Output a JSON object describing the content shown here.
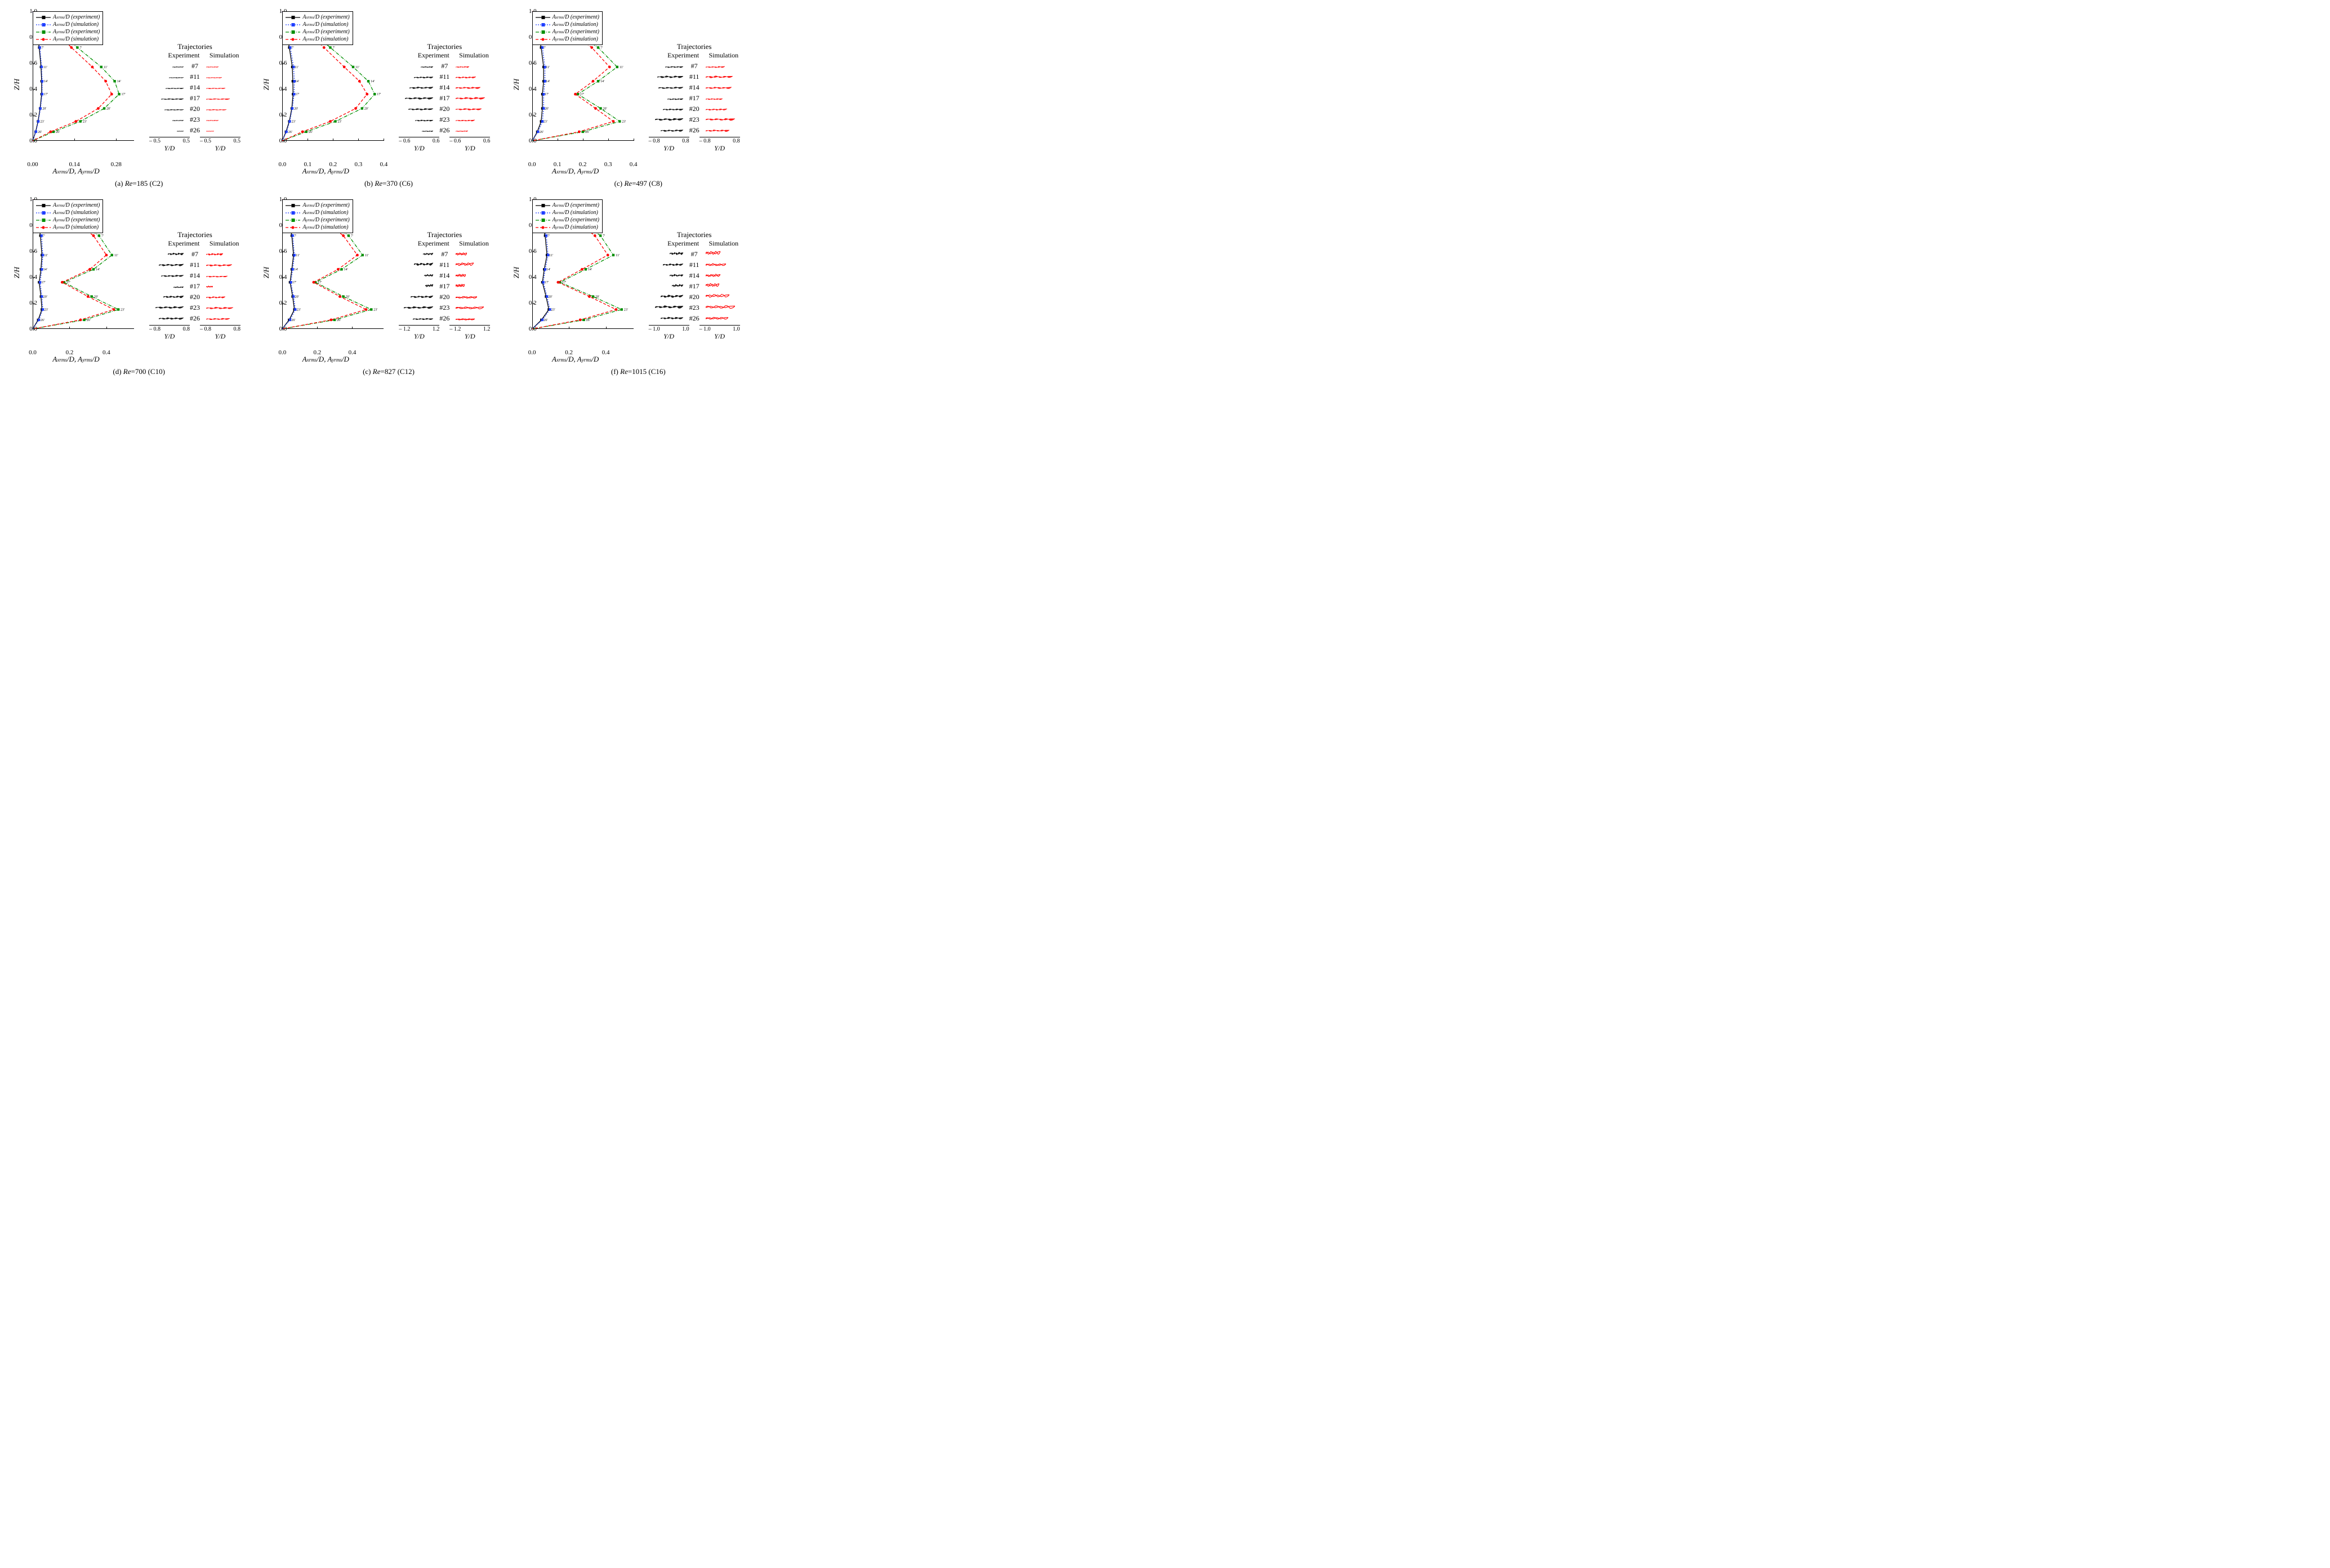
{
  "colors": {
    "black": "#000000",
    "blue": "#1f3fff",
    "green": "#008f00",
    "red": "#ff0000",
    "background": "#ffffff"
  },
  "legend_lines": [
    {
      "style": "solid",
      "color_key": "black",
      "marker": "square_black",
      "text_html": "A<sub>xrms</sub>/D (experiment)"
    },
    {
      "style": "short-dash",
      "color_key": "blue",
      "marker": "square_blue",
      "text_html": "A<sub>xrms</sub>/D (simulation)"
    },
    {
      "style": "dash-dot",
      "color_key": "green",
      "marker": "square_green",
      "text_html": "A<sub>yrms</sub>/D (experiment)"
    },
    {
      "style": "dash",
      "color_key": "red",
      "marker": "dot_red",
      "text_html": "A<sub>yrms</sub>/D (simulation)"
    }
  ],
  "y_axis": {
    "label": "Z/H",
    "ticks": [
      0.0,
      0.2,
      0.4,
      0.6,
      0.8,
      1.0
    ],
    "min": 0.0,
    "max": 1.0
  },
  "x_axis_label_html": "A<sub>xrms</sub>/D, A<sub>yrms</sub>/D",
  "traj_header": {
    "title": "Trajectories",
    "col_exp": "Experiment",
    "col_sim": "Simulation"
  },
  "traj_ids": [
    "#7",
    "#11",
    "#14",
    "#17",
    "#20",
    "#23",
    "#26"
  ],
  "marker_z": [
    0.72,
    0.57,
    0.46,
    0.36,
    0.25,
    0.15,
    0.07
  ],
  "marker_labels": [
    "7'",
    "11'",
    "14'",
    "17'",
    "20'",
    "23'",
    "26'"
  ],
  "traj_axis_label": "Y/D",
  "panels": [
    {
      "id": "a",
      "caption_prefix": "(a) ",
      "re_value": 185,
      "case_label": "(C2)",
      "x_ticks": [
        0.0,
        0.14,
        0.28
      ],
      "x_max": 0.34,
      "traj_axis_range": [
        -0.5,
        0.5
      ],
      "series": {
        "x_exp": {
          "z": [
            1.0,
            0.95,
            0.85,
            0.72,
            0.57,
            0.46,
            0.36,
            0.25,
            0.15,
            0.07,
            0.0
          ],
          "x": [
            0.0,
            0.005,
            0.012,
            0.022,
            0.028,
            0.03,
            0.03,
            0.025,
            0.018,
            0.01,
            0.0
          ]
        },
        "x_sim": {
          "z": [
            1.0,
            0.95,
            0.85,
            0.72,
            0.57,
            0.46,
            0.36,
            0.25,
            0.15,
            0.07,
            0.0
          ],
          "x": [
            0.0,
            0.006,
            0.014,
            0.024,
            0.03,
            0.032,
            0.032,
            0.026,
            0.019,
            0.011,
            0.0
          ]
        },
        "y_exp": {
          "z": [
            1.0,
            0.95,
            0.85,
            0.72,
            0.57,
            0.46,
            0.36,
            0.25,
            0.15,
            0.07,
            0.0
          ],
          "x": [
            0.0,
            0.03,
            0.09,
            0.15,
            0.23,
            0.275,
            0.29,
            0.24,
            0.16,
            0.07,
            0.0
          ]
        },
        "y_sim": {
          "z": [
            1.0,
            0.95,
            0.85,
            0.72,
            0.57,
            0.46,
            0.36,
            0.25,
            0.15,
            0.07,
            0.0
          ],
          "x": [
            0.0,
            0.025,
            0.075,
            0.13,
            0.2,
            0.245,
            0.265,
            0.22,
            0.145,
            0.06,
            0.0
          ]
        }
      },
      "traj_shapes": {
        "exp": [
          [
            20,
            3
          ],
          [
            26,
            3
          ],
          [
            32,
            4
          ],
          [
            40,
            5
          ],
          [
            34,
            4
          ],
          [
            20,
            3
          ],
          [
            12,
            2
          ]
        ],
        "sim": [
          [
            22,
            3
          ],
          [
            28,
            3
          ],
          [
            34,
            4
          ],
          [
            42,
            5
          ],
          [
            36,
            4
          ],
          [
            22,
            3
          ],
          [
            14,
            2
          ]
        ]
      }
    },
    {
      "id": "b",
      "caption_prefix": "(b) ",
      "re_value": 370,
      "case_label": "(C6)",
      "x_ticks": [
        0.0,
        0.1,
        0.2,
        0.3,
        0.4
      ],
      "x_max": 0.4,
      "traj_axis_range": [
        -0.6,
        0.6
      ],
      "series": {
        "x_exp": {
          "z": [
            1.0,
            0.95,
            0.85,
            0.72,
            0.57,
            0.46,
            0.36,
            0.25,
            0.15,
            0.07,
            0.0
          ],
          "x": [
            0.0,
            0.006,
            0.015,
            0.028,
            0.04,
            0.042,
            0.043,
            0.038,
            0.028,
            0.015,
            0.0
          ]
        },
        "x_sim": {
          "z": [
            1.0,
            0.95,
            0.85,
            0.72,
            0.57,
            0.46,
            0.36,
            0.25,
            0.15,
            0.07,
            0.0
          ],
          "x": [
            0.0,
            0.007,
            0.018,
            0.032,
            0.045,
            0.048,
            0.047,
            0.04,
            0.03,
            0.017,
            0.0
          ]
        },
        "y_exp": {
          "z": [
            1.0,
            0.95,
            0.85,
            0.72,
            0.57,
            0.46,
            0.36,
            0.25,
            0.15,
            0.07,
            0.0
          ],
          "x": [
            0.0,
            0.04,
            0.11,
            0.19,
            0.28,
            0.34,
            0.365,
            0.315,
            0.21,
            0.095,
            0.0
          ]
        },
        "y_sim": {
          "z": [
            1.0,
            0.95,
            0.85,
            0.72,
            0.57,
            0.46,
            0.36,
            0.25,
            0.15,
            0.07,
            0.0
          ],
          "x": [
            0.0,
            0.035,
            0.095,
            0.165,
            0.245,
            0.305,
            0.335,
            0.29,
            0.19,
            0.08,
            0.0
          ]
        }
      },
      "traj_shapes": {
        "exp": [
          [
            22,
            5
          ],
          [
            34,
            7
          ],
          [
            42,
            8
          ],
          [
            50,
            9
          ],
          [
            44,
            8
          ],
          [
            32,
            6
          ],
          [
            20,
            4
          ]
        ],
        "sim": [
          [
            24,
            5
          ],
          [
            36,
            7
          ],
          [
            44,
            8
          ],
          [
            52,
            9
          ],
          [
            46,
            8
          ],
          [
            34,
            6
          ],
          [
            22,
            4
          ]
        ]
      }
    },
    {
      "id": "c",
      "caption_prefix": "(c) ",
      "re_value": 497,
      "case_label": "(C8)",
      "x_ticks": [
        0.0,
        0.1,
        0.2,
        0.3,
        0.4
      ],
      "x_max": 0.4,
      "traj_axis_range": [
        -0.8,
        0.8
      ],
      "series": {
        "x_exp": {
          "z": [
            1.0,
            0.95,
            0.85,
            0.72,
            0.57,
            0.46,
            0.36,
            0.25,
            0.15,
            0.07,
            0.0
          ],
          "x": [
            0.0,
            0.01,
            0.022,
            0.035,
            0.045,
            0.045,
            0.04,
            0.04,
            0.035,
            0.02,
            0.0
          ]
        },
        "x_sim": {
          "z": [
            1.0,
            0.95,
            0.85,
            0.72,
            0.57,
            0.46,
            0.36,
            0.25,
            0.15,
            0.07,
            0.0
          ],
          "x": [
            0.0,
            0.012,
            0.025,
            0.04,
            0.05,
            0.05,
            0.045,
            0.045,
            0.04,
            0.023,
            0.0
          ]
        },
        "y_exp": {
          "z": [
            1.0,
            0.95,
            0.85,
            0.72,
            0.57,
            0.46,
            0.36,
            0.25,
            0.15,
            0.07,
            0.0
          ],
          "x": [
            0.0,
            0.06,
            0.16,
            0.26,
            0.335,
            0.26,
            0.18,
            0.27,
            0.345,
            0.2,
            0.0
          ]
        },
        "y_sim": {
          "z": [
            1.0,
            0.95,
            0.85,
            0.72,
            0.57,
            0.46,
            0.36,
            0.25,
            0.15,
            0.07,
            0.0
          ],
          "x": [
            0.0,
            0.055,
            0.145,
            0.235,
            0.305,
            0.24,
            0.17,
            0.25,
            0.32,
            0.185,
            0.0
          ]
        }
      },
      "traj_shapes": {
        "exp": [
          [
            32,
            6
          ],
          [
            46,
            9
          ],
          [
            44,
            8
          ],
          [
            28,
            6
          ],
          [
            36,
            7
          ],
          [
            50,
            10
          ],
          [
            40,
            8
          ]
        ],
        "sim": [
          [
            34,
            6
          ],
          [
            48,
            9
          ],
          [
            46,
            8
          ],
          [
            30,
            6
          ],
          [
            38,
            7
          ],
          [
            52,
            10
          ],
          [
            42,
            8
          ]
        ]
      }
    },
    {
      "id": "d",
      "caption_prefix": "(d) ",
      "re_value": 700,
      "case_label": "(C10)",
      "x_ticks": [
        0.0,
        0.2,
        0.4
      ],
      "x_max": 0.55,
      "traj_axis_range": [
        -0.8,
        0.8
      ],
      "series": {
        "x_exp": {
          "z": [
            1.0,
            0.95,
            0.85,
            0.72,
            0.57,
            0.46,
            0.36,
            0.25,
            0.15,
            0.07,
            0.0
          ],
          "x": [
            0.0,
            0.012,
            0.028,
            0.042,
            0.05,
            0.045,
            0.035,
            0.045,
            0.05,
            0.03,
            0.0
          ]
        },
        "x_sim": {
          "z": [
            1.0,
            0.95,
            0.85,
            0.72,
            0.57,
            0.46,
            0.36,
            0.25,
            0.15,
            0.07,
            0.0
          ],
          "x": [
            0.0,
            0.014,
            0.032,
            0.048,
            0.055,
            0.05,
            0.04,
            0.05,
            0.055,
            0.034,
            0.0
          ]
        },
        "y_exp": {
          "z": [
            1.0,
            0.95,
            0.85,
            0.72,
            0.57,
            0.46,
            0.36,
            0.25,
            0.15,
            0.07,
            0.0
          ],
          "x": [
            0.0,
            0.08,
            0.22,
            0.36,
            0.43,
            0.33,
            0.17,
            0.32,
            0.465,
            0.28,
            0.0
          ]
        },
        "y_sim": {
          "z": [
            1.0,
            0.95,
            0.85,
            0.72,
            0.57,
            0.46,
            0.36,
            0.25,
            0.15,
            0.07,
            0.0
          ],
          "x": [
            0.0,
            0.07,
            0.2,
            0.33,
            0.4,
            0.31,
            0.16,
            0.3,
            0.44,
            0.26,
            0.0
          ]
        }
      },
      "traj_shapes": {
        "exp": [
          [
            28,
            10
          ],
          [
            44,
            9
          ],
          [
            40,
            8
          ],
          [
            18,
            6
          ],
          [
            36,
            10
          ],
          [
            50,
            10
          ],
          [
            44,
            9
          ]
        ],
        "sim": [
          [
            30,
            9
          ],
          [
            46,
            8
          ],
          [
            38,
            6
          ],
          [
            12,
            8
          ],
          [
            34,
            8
          ],
          [
            48,
            8
          ],
          [
            42,
            7
          ]
        ]
      }
    },
    {
      "id": "e",
      "caption_prefix": "(c) ",
      "re_value": 827,
      "case_label": "(C12)",
      "x_ticks": [
        0.0,
        0.2,
        0.4
      ],
      "x_max": 0.58,
      "traj_axis_range": [
        -1.2,
        1.2
      ],
      "series": {
        "x_exp": {
          "z": [
            1.0,
            0.95,
            0.85,
            0.72,
            0.57,
            0.46,
            0.36,
            0.25,
            0.15,
            0.07,
            0.0
          ],
          "x": [
            0.0,
            0.015,
            0.035,
            0.055,
            0.065,
            0.055,
            0.045,
            0.06,
            0.07,
            0.04,
            0.0
          ]
        },
        "x_sim": {
          "z": [
            1.0,
            0.95,
            0.85,
            0.72,
            0.57,
            0.46,
            0.36,
            0.25,
            0.15,
            0.07,
            0.0
          ],
          "x": [
            0.0,
            0.017,
            0.04,
            0.06,
            0.07,
            0.06,
            0.05,
            0.065,
            0.075,
            0.045,
            0.0
          ]
        },
        "y_exp": {
          "z": [
            1.0,
            0.95,
            0.85,
            0.72,
            0.57,
            0.46,
            0.36,
            0.25,
            0.15,
            0.07,
            0.0
          ],
          "x": [
            0.0,
            0.09,
            0.24,
            0.38,
            0.46,
            0.34,
            0.19,
            0.35,
            0.51,
            0.3,
            0.0
          ]
        },
        "y_sim": {
          "z": [
            1.0,
            0.95,
            0.85,
            0.72,
            0.57,
            0.46,
            0.36,
            0.25,
            0.15,
            0.07,
            0.0
          ],
          "x": [
            0.0,
            0.08,
            0.22,
            0.35,
            0.43,
            0.32,
            0.18,
            0.33,
            0.48,
            0.28,
            0.0
          ]
        }
      },
      "traj_shapes": {
        "exp": [
          [
            18,
            10
          ],
          [
            34,
            12
          ],
          [
            16,
            10
          ],
          [
            14,
            12
          ],
          [
            40,
            10
          ],
          [
            52,
            10
          ],
          [
            36,
            7
          ]
        ],
        "sim": [
          [
            20,
            10
          ],
          [
            32,
            12
          ],
          [
            18,
            10
          ],
          [
            16,
            12
          ],
          [
            38,
            8
          ],
          [
            50,
            9
          ],
          [
            34,
            6
          ]
        ]
      }
    },
    {
      "id": "f",
      "caption_prefix": "(f) ",
      "re_value": 1015,
      "case_label": "(C16)",
      "x_ticks": [
        0.0,
        0.2,
        0.4
      ],
      "x_max": 0.55,
      "traj_axis_range": [
        -1.0,
        1.0
      ],
      "series": {
        "x_exp": {
          "z": [
            1.0,
            0.95,
            0.85,
            0.72,
            0.57,
            0.46,
            0.36,
            0.25,
            0.15,
            0.07,
            0.0
          ],
          "x": [
            0.0,
            0.02,
            0.045,
            0.07,
            0.08,
            0.065,
            0.055,
            0.075,
            0.09,
            0.05,
            0.0
          ]
        },
        "x_sim": {
          "z": [
            1.0,
            0.95,
            0.85,
            0.72,
            0.57,
            0.46,
            0.36,
            0.25,
            0.15,
            0.07,
            0.0
          ],
          "x": [
            0.0,
            0.022,
            0.05,
            0.076,
            0.086,
            0.07,
            0.06,
            0.08,
            0.096,
            0.055,
            0.0
          ]
        },
        "y_exp": {
          "z": [
            1.0,
            0.95,
            0.85,
            0.72,
            0.57,
            0.46,
            0.36,
            0.25,
            0.15,
            0.07,
            0.0
          ],
          "x": [
            0.0,
            0.09,
            0.24,
            0.37,
            0.44,
            0.29,
            0.15,
            0.33,
            0.485,
            0.28,
            0.0
          ]
        },
        "y_sim": {
          "z": [
            1.0,
            0.95,
            0.85,
            0.72,
            0.57,
            0.46,
            0.36,
            0.25,
            0.15,
            0.07,
            0.0
          ],
          "x": [
            0.0,
            0.08,
            0.22,
            0.34,
            0.41,
            0.27,
            0.14,
            0.31,
            0.455,
            0.26,
            0.0
          ]
        }
      },
      "traj_shapes": {
        "exp": [
          [
            24,
            12
          ],
          [
            36,
            10
          ],
          [
            24,
            10
          ],
          [
            20,
            12
          ],
          [
            40,
            12
          ],
          [
            50,
            12
          ],
          [
            40,
            10
          ]
        ],
        "sim": [
          [
            26,
            14
          ],
          [
            36,
            10
          ],
          [
            26,
            10
          ],
          [
            24,
            14
          ],
          [
            42,
            14
          ],
          [
            52,
            12
          ],
          [
            40,
            10
          ]
        ]
      }
    }
  ]
}
